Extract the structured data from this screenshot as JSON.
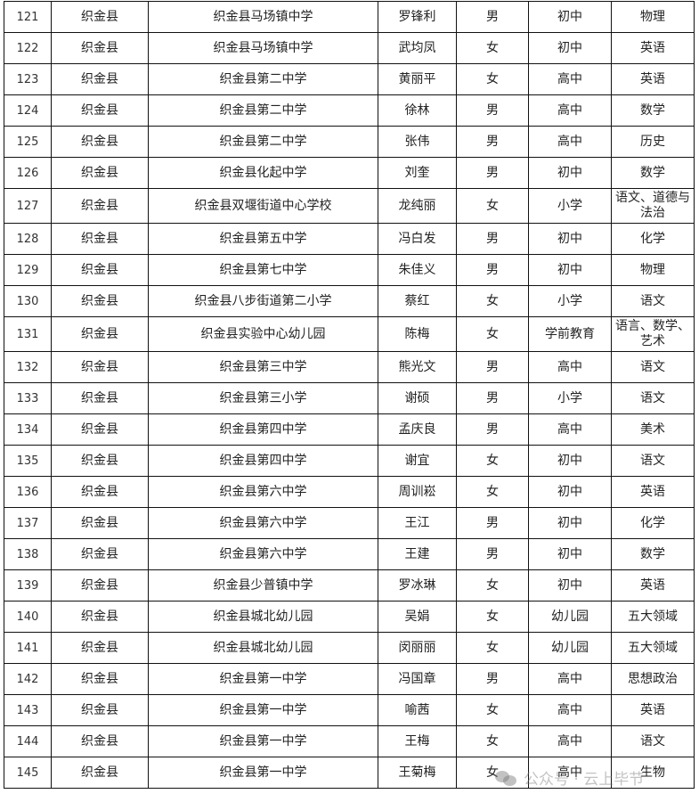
{
  "rows": [
    [
      "121",
      "织金县",
      "织金县马场镇中学",
      "罗锋利",
      "男",
      "初中",
      "物理"
    ],
    [
      "122",
      "织金县",
      "织金县马场镇中学",
      "武均凤",
      "女",
      "初中",
      "英语"
    ],
    [
      "123",
      "织金县",
      "织金县第二中学",
      "黄丽平",
      "女",
      "高中",
      "英语"
    ],
    [
      "124",
      "织金县",
      "织金县第二中学",
      "徐林",
      "男",
      "高中",
      "数学"
    ],
    [
      "125",
      "织金县",
      "织金县第二中学",
      "张伟",
      "男",
      "高中",
      "历史"
    ],
    [
      "126",
      "织金县",
      "织金县化起中学",
      "刘奎",
      "男",
      "初中",
      "数学"
    ],
    [
      "127",
      "织金县",
      "织金县双堰街道中心学校",
      "龙纯丽",
      "女",
      "小学",
      "语文、道德与法治"
    ],
    [
      "128",
      "织金县",
      "织金县第五中学",
      "冯白发",
      "男",
      "初中",
      "化学"
    ],
    [
      "129",
      "织金县",
      "织金县第七中学",
      "朱佳义",
      "男",
      "初中",
      "物理"
    ],
    [
      "130",
      "织金县",
      "织金县八步街道第二小学",
      "蔡红",
      "女",
      "小学",
      "语文"
    ],
    [
      "131",
      "织金县",
      "织金县实验中心幼儿园",
      "陈梅",
      "女",
      "学前教育",
      "语言、数学、艺术"
    ],
    [
      "132",
      "织金县",
      "织金县第三中学",
      "熊光文",
      "男",
      "高中",
      "语文"
    ],
    [
      "133",
      "织金县",
      "织金县第三小学",
      "谢硕",
      "男",
      "小学",
      "语文"
    ],
    [
      "134",
      "织金县",
      "织金县第四中学",
      "孟庆良",
      "男",
      "高中",
      "美术"
    ],
    [
      "135",
      "织金县",
      "织金县第四中学",
      "谢宜",
      "女",
      "初中",
      "语文"
    ],
    [
      "136",
      "织金县",
      "织金县第六中学",
      "周训崧",
      "女",
      "初中",
      "英语"
    ],
    [
      "137",
      "织金县",
      "织金县第六中学",
      "王江",
      "男",
      "初中",
      "化学"
    ],
    [
      "138",
      "织金县",
      "织金县第六中学",
      "王建",
      "男",
      "初中",
      "数学"
    ],
    [
      "139",
      "织金县",
      "织金县少普镇中学",
      "罗冰琳",
      "女",
      "初中",
      "英语"
    ],
    [
      "140",
      "织金县",
      "织金县城北幼儿园",
      "吴娟",
      "女",
      "幼儿园",
      "五大领域"
    ],
    [
      "141",
      "织金县",
      "织金县城北幼儿园",
      "闵丽丽",
      "女",
      "幼儿园",
      "五大领域"
    ],
    [
      "142",
      "织金县",
      "织金县第一中学",
      "冯国章",
      "男",
      "高中",
      "思想政治"
    ],
    [
      "143",
      "织金县",
      "织金县第一中学",
      "喻茜",
      "女",
      "高中",
      "英语"
    ],
    [
      "144",
      "织金县",
      "织金县第一中学",
      "王梅",
      "女",
      "高中",
      "语文"
    ],
    [
      "145",
      "织金县",
      "织金县第一中学",
      "王菊梅",
      "女",
      "高中",
      "生物"
    ]
  ],
  "watermark": {
    "text": "公众号 · 云上毕节",
    "icon": "wechat-icon"
  }
}
